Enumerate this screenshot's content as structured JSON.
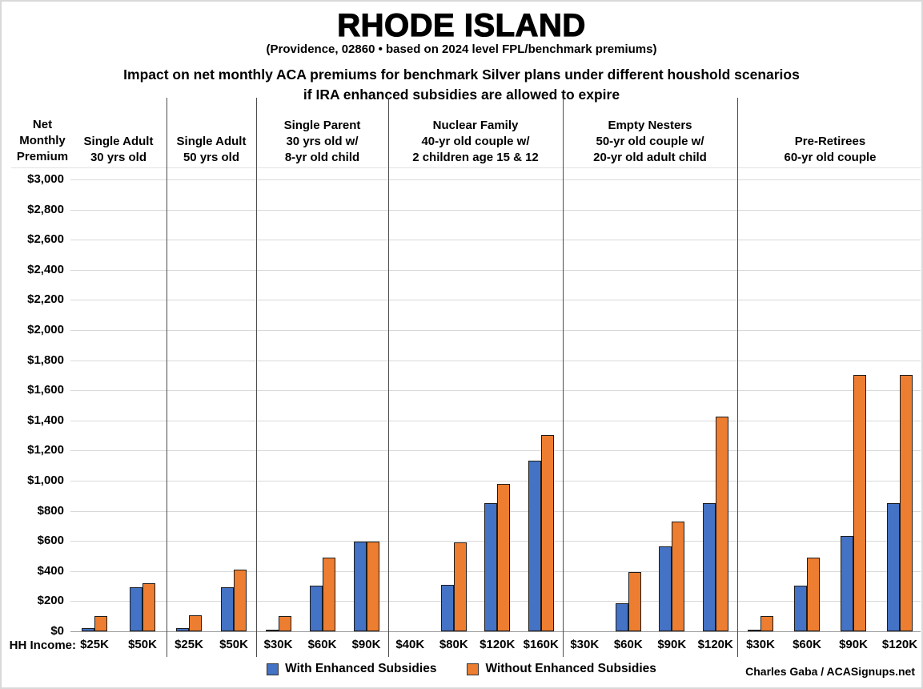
{
  "title": "RHODE ISLAND",
  "subtitle": "(Providence, 02860 • based on 2024 level FPL/benchmark premiums)",
  "heading_line1": "Impact on net monthly ACA premiums for benchmark Silver plans under different houshold scenarios",
  "heading_line2": "if IRA enhanced subsidies are allowed to expire",
  "y_axis_title": "Net\nMonthly\nPremium",
  "x_axis_prefix": "HH Income:",
  "credit": "Charles Gaba / ACASignups.net",
  "legend": [
    {
      "label": "With Enhanced Subsidies",
      "color": "#4472C4"
    },
    {
      "label": "Without Enhanced Subsidies",
      "color": "#ED7D31"
    }
  ],
  "chart_data": {
    "type": "bar",
    "title": "RHODE ISLAND",
    "ylabel": "Net Monthly Premium",
    "xlabel": "HH Income",
    "ylim": [
      0,
      3000
    ],
    "ytick_step": 200,
    "grid": true,
    "legend_position": "bottom",
    "series_names": [
      "With Enhanced Subsidies",
      "Without Enhanced Subsidies"
    ],
    "series_colors": [
      "#4472C4",
      "#ED7D31"
    ],
    "groups": [
      {
        "header": "Single Adult\n30 yrs old",
        "incomes": [
          "$25K",
          "$50K"
        ],
        "with_enhanced": [
          20,
          295
        ],
        "without_enhanced": [
          100,
          320
        ]
      },
      {
        "header": "Single Adult\n50 yrs old",
        "incomes": [
          "$25K",
          "$50K"
        ],
        "with_enhanced": [
          20,
          295
        ],
        "without_enhanced": [
          105,
          410
        ]
      },
      {
        "header": "Single Parent\n30 yrs old w/\n8-yr old child",
        "incomes": [
          "$30K",
          "$60K",
          "$90K"
        ],
        "with_enhanced": [
          10,
          305,
          595
        ],
        "without_enhanced": [
          100,
          490,
          595
        ]
      },
      {
        "header": "Nuclear Family\n40-yr old couple w/\n2 children age 15 & 12",
        "incomes": [
          "$40K",
          "$80K",
          "$120K",
          "$160K"
        ],
        "with_enhanced": [
          0,
          310,
          850,
          1135
        ],
        "without_enhanced": [
          0,
          590,
          980,
          1305
        ]
      },
      {
        "header": "Empty Nesters\n50-yr old couple w/\n20-yr old adult child",
        "incomes": [
          "$30K",
          "$60K",
          "$90K",
          "$120K"
        ],
        "with_enhanced": [
          0,
          185,
          565,
          850
        ],
        "without_enhanced": [
          0,
          395,
          730,
          1425
        ]
      },
      {
        "header": "Pre-Retirees\n60-yr old couple",
        "incomes": [
          "$30K",
          "$60K",
          "$90K",
          "$120K"
        ],
        "with_enhanced": [
          10,
          305,
          635,
          850
        ],
        "without_enhanced": [
          100,
          490,
          1700,
          1700
        ]
      }
    ]
  }
}
